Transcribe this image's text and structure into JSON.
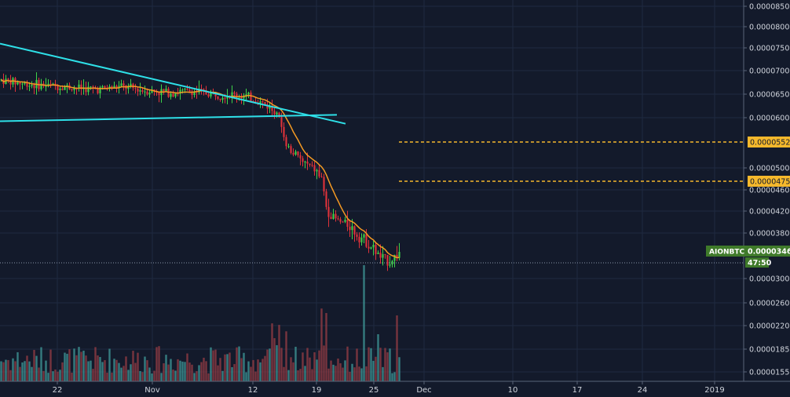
{
  "colors": {
    "background": "#131a2b",
    "grid": "#1f2a40",
    "axis_text": "#d0d4dc",
    "up": "#3fd34a",
    "down": "#e0323a",
    "ma": "#f59a23",
    "trendline": "#2ee0e8",
    "level_line": "#f5b82c",
    "price_tag": "#3f7a2a",
    "level_tag": "#f5b82c",
    "volume_up": "#3c8e8e",
    "volume_down": "#8a3a42"
  },
  "chart_data": {
    "type": "candlestick",
    "symbol": "AIONBTC",
    "price_axis": {
      "tick_labels": [
        "0.0000850",
        "0.0000800",
        "0.0000750",
        "0.0000700",
        "0.0000650",
        "0.0000600",
        "0.0000500",
        "0.0000460",
        "0.0000420",
        "0.0000380",
        "0.0000300",
        "0.0000260",
        "0.0000220",
        "0.0000185",
        "0.0000155"
      ]
    },
    "time_axis": {
      "tick_labels": [
        "22",
        "Nov",
        "12",
        "19",
        "25",
        "Dec",
        "10",
        "17",
        "24",
        "2019"
      ]
    },
    "last_price": {
      "label": "AIONBTC",
      "value": "0.0000346",
      "countdown": "47:50"
    },
    "horizontal_levels": [
      {
        "value": "0.0000552"
      },
      {
        "value": "0.0000475"
      }
    ],
    "trendlines": [
      {
        "name": "descending",
        "from": [
          "Oct 15",
          7.6e-05
        ],
        "to": [
          "Nov 22",
          5.88e-05
        ]
      },
      {
        "name": "ascending",
        "from": [
          "Oct 15",
          5.93e-05
        ],
        "to": [
          "Nov 21",
          6.06e-05
        ]
      }
    ],
    "moving_average": {
      "color": "orange"
    },
    "price_path": [
      [
        0,
        6.8e-05
      ],
      [
        0.06,
        6.72e-05
      ],
      [
        0.12,
        6.68e-05
      ],
      [
        0.18,
        6.64e-05
      ],
      [
        0.24,
        6.6e-05
      ],
      [
        0.3,
        6.66e-05
      ],
      [
        0.36,
        6.58e-05
      ],
      [
        0.42,
        6.54e-05
      ],
      [
        0.48,
        6.56e-05
      ],
      [
        0.54,
        6.5e-05
      ],
      [
        0.6,
        6.48e-05
      ],
      [
        0.64,
        6.38e-05
      ],
      [
        0.67,
        6.25e-05
      ],
      [
        0.695,
        6.05e-05
      ],
      [
        0.705,
        5.8e-05
      ],
      [
        0.72,
        5.4e-05
      ],
      [
        0.74,
        5.25e-05
      ],
      [
        0.76,
        5.1e-05
      ],
      [
        0.79,
        4.95e-05
      ],
      [
        0.805,
        4.8e-05
      ],
      [
        0.815,
        4.3e-05
      ],
      [
        0.83,
        4.1e-05
      ],
      [
        0.85,
        4e-05
      ],
      [
        0.875,
        3.95e-05
      ],
      [
        0.89,
        3.8e-05
      ],
      [
        0.91,
        3.7e-05
      ],
      [
        0.935,
        3.52e-05
      ],
      [
        0.955,
        3.35e-05
      ],
      [
        0.975,
        3.3e-05
      ],
      [
        1.0,
        3.46e-05
      ]
    ]
  }
}
